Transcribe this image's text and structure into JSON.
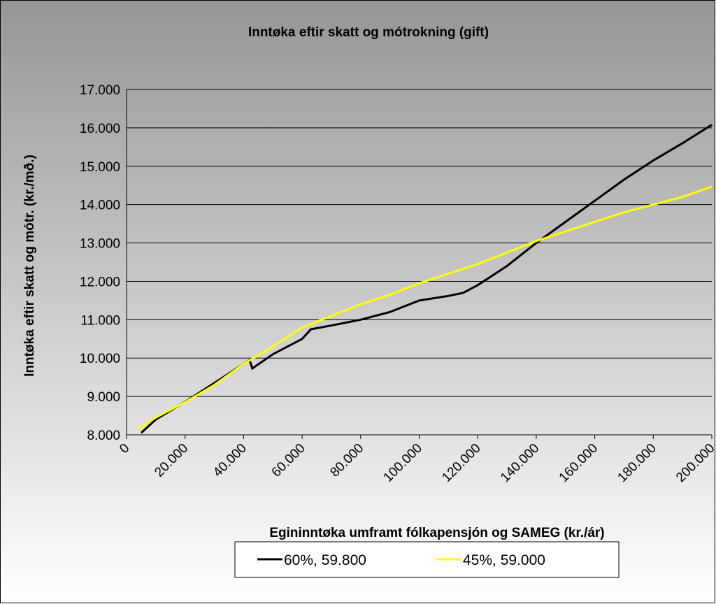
{
  "chart_data": {
    "type": "line",
    "title": "Inntøka eftir skatt og mótrokning (gift)",
    "xlabel": "Egininntøka umframt fólkapensjón og SAMEG (kr./ár)",
    "ylabel": "Inntøka eftir skatt og mótr. (kr./mð.)",
    "xlim": [
      0,
      200000
    ],
    "ylim": [
      8000,
      17000
    ],
    "xticks": [
      0,
      {
        "value": 20000,
        "label": "20.000"
      },
      {
        "value": 40000,
        "label": "40.000"
      },
      {
        "value": 60000,
        "label": "60.000"
      },
      {
        "value": 80000,
        "label": "80.000"
      },
      {
        "value": 100000,
        "label": "100.000"
      },
      {
        "value": 120000,
        "label": "120.000"
      },
      {
        "value": 140000,
        "label": "140.000"
      },
      {
        "value": 160000,
        "label": "160.000"
      },
      {
        "value": 180000,
        "label": "180.000"
      },
      {
        "value": 200000,
        "label": "200.000"
      }
    ],
    "yticks": [
      {
        "value": 8000,
        "label": "8.000"
      },
      {
        "value": 9000,
        "label": "9.000"
      },
      {
        "value": 10000,
        "label": "10.000"
      },
      {
        "value": 11000,
        "label": "11.000"
      },
      {
        "value": 12000,
        "label": "12.000"
      },
      {
        "value": 13000,
        "label": "13.000"
      },
      {
        "value": 14000,
        "label": "14.000"
      },
      {
        "value": 15000,
        "label": "15.000"
      },
      {
        "value": 16000,
        "label": "16.000"
      },
      {
        "value": 17000,
        "label": "17.000"
      }
    ],
    "grid": true,
    "legend": "bottom",
    "series": [
      {
        "name": "60%, 59.800",
        "color": "#000000",
        "x": [
          5000,
          10000,
          20000,
          30000,
          40000,
          42000,
          43000,
          50000,
          60000,
          63000,
          70000,
          80000,
          90000,
          100000,
          110000,
          115000,
          120000,
          130000,
          140000,
          150000,
          160000,
          170000,
          180000,
          190000,
          200000
        ],
        "values": [
          8050,
          8400,
          8860,
          9350,
          9850,
          9950,
          9730,
          10100,
          10500,
          10750,
          10850,
          11000,
          11200,
          11500,
          11620,
          11700,
          11900,
          12400,
          13000,
          13550,
          14100,
          14650,
          15150,
          15600,
          16080
        ]
      },
      {
        "name": "45%, 59.000",
        "color": "#ffff00",
        "x": [
          4000,
          10000,
          20000,
          30000,
          40000,
          50000,
          60000,
          70000,
          80000,
          90000,
          100000,
          110000,
          120000,
          130000,
          140000,
          150000,
          160000,
          170000,
          180000,
          190000,
          200000
        ],
        "values": [
          8150,
          8450,
          8850,
          9300,
          9850,
          10300,
          10800,
          11100,
          11400,
          11650,
          11950,
          12200,
          12450,
          12750,
          13050,
          13300,
          13550,
          13800,
          14000,
          14200,
          14470
        ]
      }
    ]
  }
}
